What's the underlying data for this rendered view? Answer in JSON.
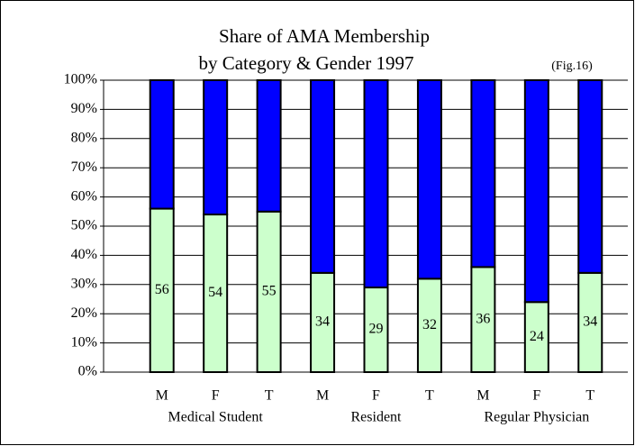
{
  "chart_data": {
    "type": "stacked_bar",
    "title": [
      "Share of AMA Membership",
      "by Category & Gender 1997"
    ],
    "annotation": "(Fig.16)",
    "categories": [
      "M",
      "F",
      "T",
      "M",
      "F",
      "T",
      "M",
      "F",
      "T"
    ],
    "groups": [
      "Medical Student",
      "Resident",
      "Regular Physician"
    ],
    "series": [
      {
        "color": "#ccffcc",
        "values": [
          56,
          54,
          55,
          34,
          29,
          32,
          36,
          24,
          34
        ],
        "labeled": true
      },
      {
        "color": "#0000ff",
        "values": [
          44,
          46,
          45,
          66,
          71,
          68,
          64,
          76,
          66
        ],
        "labeled": false
      }
    ],
    "ylim": [
      0,
      100
    ],
    "yticks": [
      {
        "value": 0,
        "label": "0%"
      },
      {
        "value": 10,
        "label": "10%"
      },
      {
        "value": 20,
        "label": "20%"
      },
      {
        "value": 30,
        "label": "30%"
      },
      {
        "value": 40,
        "label": "40%"
      },
      {
        "value": 50,
        "label": "50%"
      },
      {
        "value": 60,
        "label": "60%"
      },
      {
        "value": 70,
        "label": "70%"
      },
      {
        "value": 80,
        "label": "80%"
      },
      {
        "value": 90,
        "label": "90%"
      },
      {
        "value": 100,
        "label": "100%"
      }
    ],
    "grid": true
  }
}
